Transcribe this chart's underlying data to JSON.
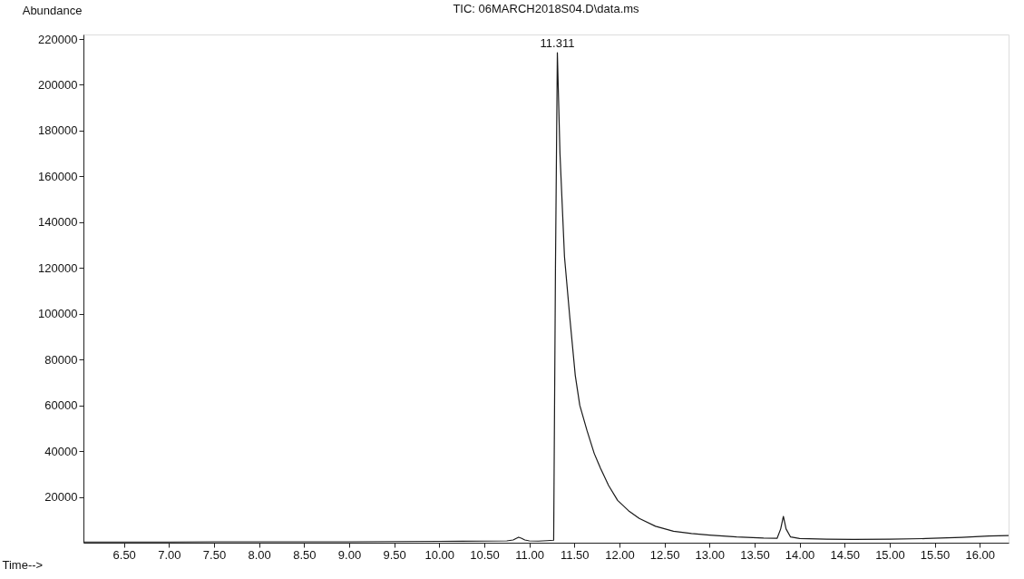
{
  "chart_data": {
    "type": "line",
    "title": "TIC: 06MARCH2018S04.D\\data.ms",
    "xlabel": "Time-->",
    "ylabel": "Abundance",
    "x": [
      6.05,
      6.5,
      7.0,
      7.5,
      8.0,
      8.5,
      9.0,
      9.5,
      10.0,
      10.5,
      10.75,
      10.82,
      10.86,
      10.88,
      10.91,
      10.95,
      11.0,
      11.1,
      11.2,
      11.27,
      11.29,
      11.311,
      11.34,
      11.39,
      11.45,
      11.51,
      11.56,
      11.64,
      11.72,
      11.79,
      11.88,
      11.98,
      12.1,
      12.22,
      12.4,
      12.6,
      12.8,
      13.0,
      13.3,
      13.6,
      13.75,
      13.79,
      13.82,
      13.85,
      13.9,
      14.0,
      14.3,
      14.6,
      15.0,
      15.4,
      15.8,
      16.1,
      16.32
    ],
    "series": [
      {
        "color": "#1a1a1a",
        "values": [
          300,
          300,
          300,
          400,
          400,
          400,
          400,
          500,
          600,
          700,
          800,
          1200,
          2000,
          2400,
          2000,
          1200,
          800,
          700,
          900,
          1100,
          120000,
          214000,
          170000,
          125000,
          98000,
          73000,
          60000,
          49000,
          39000,
          32500,
          25000,
          18500,
          14000,
          10600,
          7200,
          5000,
          4000,
          3300,
          2500,
          2000,
          1900,
          6000,
          11500,
          6000,
          2500,
          1800,
          1500,
          1400,
          1500,
          1800,
          2300,
          2900,
          3100
        ]
      }
    ],
    "annotations": [
      {
        "text": "11.311",
        "x": 11.311,
        "y": 214000
      }
    ],
    "xlim": [
      6.05,
      16.32
    ],
    "ylim": [
      0,
      222000
    ],
    "xticks": [
      {
        "value": 6.5,
        "label": "6.50"
      },
      {
        "value": 7.0,
        "label": "7.00"
      },
      {
        "value": 7.5,
        "label": "7.50"
      },
      {
        "value": 8.0,
        "label": "8.00"
      },
      {
        "value": 8.5,
        "label": "8.50"
      },
      {
        "value": 9.0,
        "label": "9.00"
      },
      {
        "value": 9.5,
        "label": "9.50"
      },
      {
        "value": 10.0,
        "label": "10.00"
      },
      {
        "value": 10.5,
        "label": "10.50"
      },
      {
        "value": 11.0,
        "label": "11.00"
      },
      {
        "value": 11.5,
        "label": "11.50"
      },
      {
        "value": 12.0,
        "label": "12.00"
      },
      {
        "value": 12.5,
        "label": "12.50"
      },
      {
        "value": 13.0,
        "label": "13.00"
      },
      {
        "value": 13.5,
        "label": "13.50"
      },
      {
        "value": 14.0,
        "label": "14.00"
      },
      {
        "value": 14.5,
        "label": "14.50"
      },
      {
        "value": 15.0,
        "label": "15.00"
      },
      {
        "value": 15.5,
        "label": "15.50"
      },
      {
        "value": 16.0,
        "label": "16.00"
      }
    ],
    "yticks": [
      20000,
      40000,
      60000,
      80000,
      100000,
      120000,
      140000,
      160000,
      180000,
      200000,
      220000
    ],
    "grid": false,
    "marker": "none",
    "line_style": "solid"
  }
}
